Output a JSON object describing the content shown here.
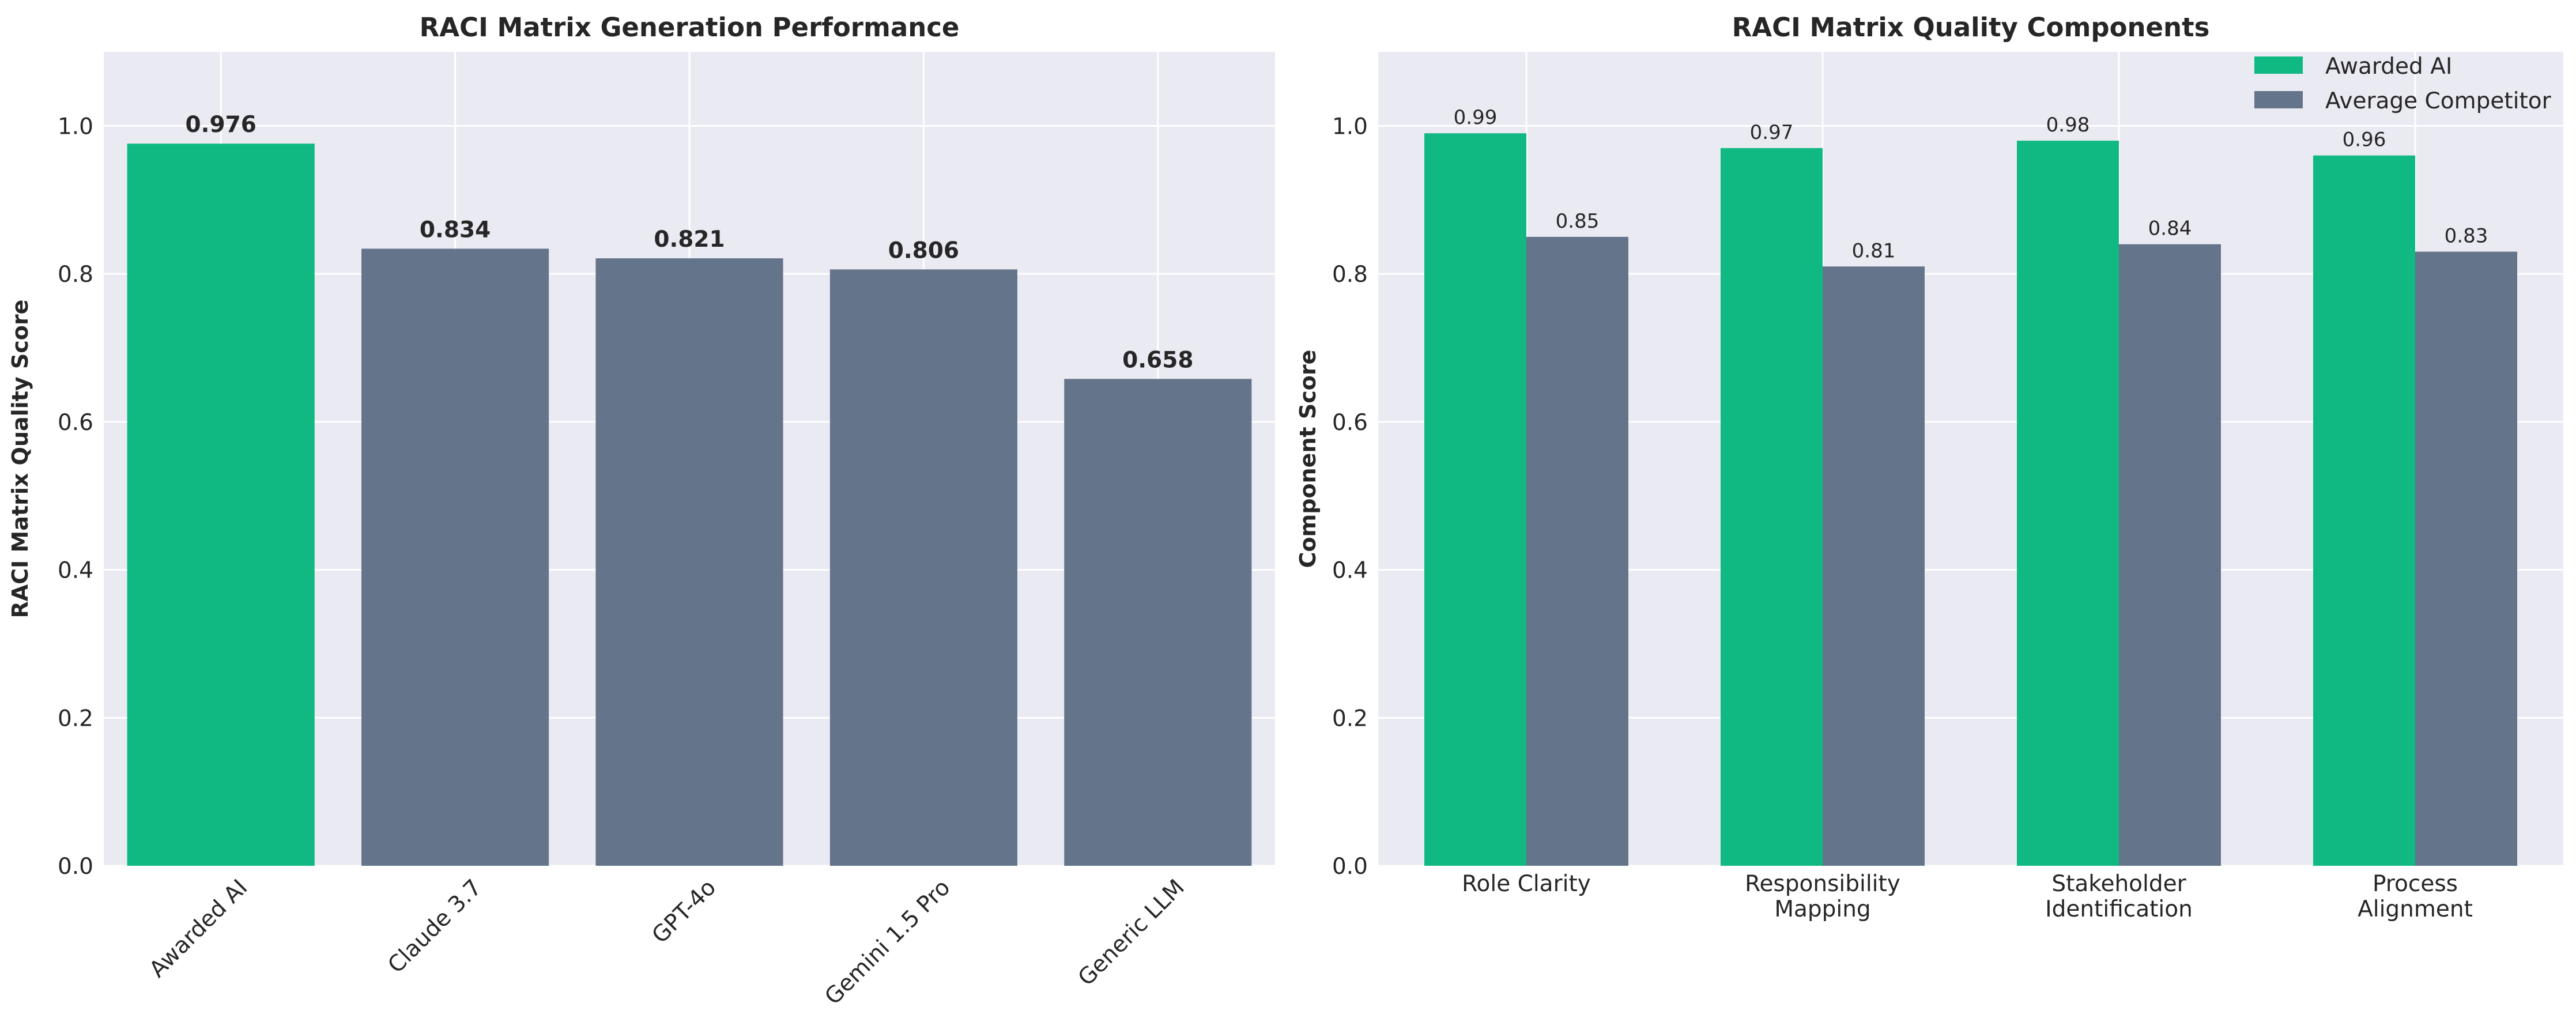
{
  "colors": {
    "accent": "#10b981",
    "competitor": "#64748b",
    "plot_bg": "#eaeaf2",
    "grid": "#ffffff",
    "text": "#262626"
  },
  "chart_data": [
    {
      "type": "bar",
      "title": "RACI Matrix Generation Performance",
      "xlabel": "",
      "ylabel": "RACI Matrix Quality Score",
      "ylim": [
        0,
        1.1
      ],
      "yticks": [
        "0.0",
        "0.2",
        "0.4",
        "0.6",
        "0.8",
        "1.0"
      ],
      "grid": true,
      "categories": [
        "Awarded AI",
        "Claude 3.7",
        "GPT-4o",
        "Gemini 1.5 Pro",
        "Generic LLM"
      ],
      "values": [
        0.976,
        0.834,
        0.821,
        0.806,
        0.658
      ],
      "value_labels": [
        "0.976",
        "0.834",
        "0.821",
        "0.806",
        "0.658"
      ],
      "bar_colors": [
        "#10b981",
        "#64748b",
        "#64748b",
        "#64748b",
        "#64748b"
      ],
      "xtick_rotation": 45
    },
    {
      "type": "bar",
      "title": "RACI Matrix Quality Components",
      "xlabel": "",
      "ylabel": "Component Score",
      "ylim": [
        0,
        1.1
      ],
      "yticks": [
        "0.0",
        "0.2",
        "0.4",
        "0.6",
        "0.8",
        "1.0"
      ],
      "grid": true,
      "legend": "top-right",
      "categories": [
        [
          "Role Clarity"
        ],
        [
          "Responsibility",
          "Mapping"
        ],
        [
          "Stakeholder",
          "Identification"
        ],
        [
          "Process",
          "Alignment"
        ]
      ],
      "series": [
        {
          "name": "Awarded AI",
          "color": "#10b981",
          "values": [
            0.99,
            0.97,
            0.98,
            0.96
          ],
          "value_labels": [
            "0.99",
            "0.97",
            "0.98",
            "0.96"
          ]
        },
        {
          "name": "Average Competitor",
          "color": "#64748b",
          "values": [
            0.85,
            0.81,
            0.84,
            0.83
          ],
          "value_labels": [
            "0.85",
            "0.81",
            "0.84",
            "0.83"
          ]
        }
      ]
    }
  ]
}
